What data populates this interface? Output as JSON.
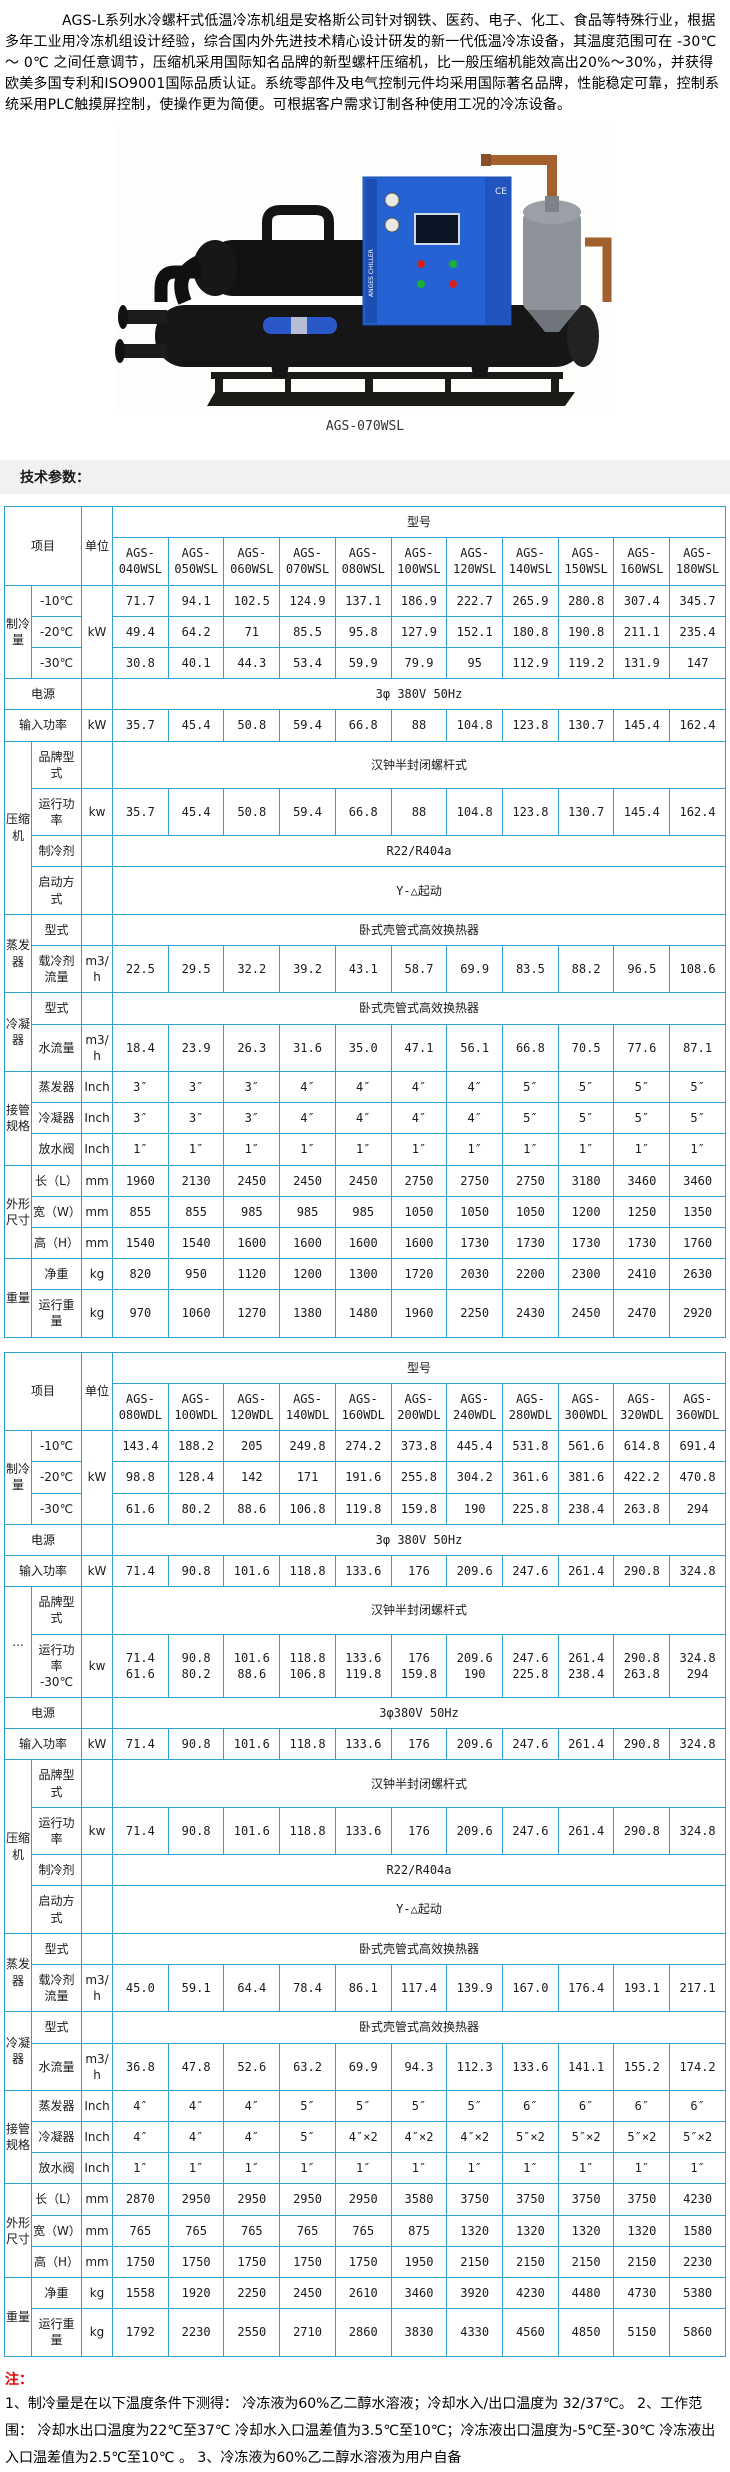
{
  "intro": "AGS-L系列水冷螺杆式低温冷冻机组是安格斯公司针对钢铁、医药、电子、化工、食品等特殊行业，根据多年工业用冷冻机组设计经验，综合国内外先进技术精心设计研发的新一代低温冷冻设备，其温度范围可在 -30℃ ～ 0℃ 之间任意调节，压缩机采用国际知名品牌的新型螺杆压缩机，比一般压缩机能效高出20%～30%，并获得欧美多国专利和ISO9001国际品质认证。系统零部件及电气控制元件均采用国际著名品牌，性能稳定可靠，控制系统采用PLC触摸屏控制，使操作更为简便。可根据客户需求订制各种使用工况的冷冻设备。",
  "photo": {
    "caption": "AGS-070WSL"
  },
  "section": {
    "heading": "技术参数："
  },
  "colors": {
    "table_border": "#2f9fd2",
    "heading_bg": "#f1f1f1",
    "note_red": "#e60000",
    "cabinet_blue": "#2563d4"
  },
  "tables": [
    {
      "header": {
        "item": "项目",
        "unit": "单位",
        "model": "型号",
        "models": [
          "AGS-\n040WSL",
          "AGS-\n050WSL",
          "AGS-\n060WSL",
          "AGS-\n070WSL",
          "AGS-\n080WSL",
          "AGS-\n100WSL",
          "AGS-\n120WSL",
          "AGS-\n140WSL",
          "AGS-\n150WSL",
          "AGS-\n160WSL",
          "AGS-\n180WSL"
        ]
      },
      "rows": [
        {
          "g": "制冷量",
          "gs": 3,
          "label": "-10℃",
          "unit": "kW",
          "us": 3,
          "values": [
            "71.7",
            "94.1",
            "102.5",
            "124.9",
            "137.1",
            "186.9",
            "222.7",
            "265.9",
            "280.8",
            "307.4",
            "345.7"
          ]
        },
        {
          "label": "-20℃",
          "values": [
            "49.4",
            "64.2",
            "71",
            "85.5",
            "95.8",
            "127.9",
            "152.1",
            "180.8",
            "190.8",
            "211.1",
            "235.4"
          ]
        },
        {
          "label": "-30℃",
          "values": [
            "30.8",
            "40.1",
            "44.3",
            "53.4",
            "59.9",
            "79.9",
            "95",
            "112.9",
            "119.2",
            "131.9",
            "147"
          ]
        },
        {
          "wide": true,
          "label": "电源",
          "unit": "",
          "span": "3φ 380V 50Hz"
        },
        {
          "wide": true,
          "label": "输入功率",
          "unit": "kW",
          "values": [
            "35.7",
            "45.4",
            "50.8",
            "59.4",
            "66.8",
            "88",
            "104.8",
            "123.8",
            "130.7",
            "145.4",
            "162.4"
          ]
        },
        {
          "g": "压缩机",
          "gs": 4,
          "label": "品牌型式",
          "unit": "",
          "span": "汉钟半封闭螺杆式"
        },
        {
          "label": "运行功率",
          "unit": "kw",
          "values": [
            "35.7",
            "45.4",
            "50.8",
            "59.4",
            "66.8",
            "88",
            "104.8",
            "123.8",
            "130.7",
            "145.4",
            "162.4"
          ]
        },
        {
          "label": "制冷剂",
          "unit": "",
          "span": "R22/R404a"
        },
        {
          "label": "启动方式",
          "unit": "",
          "span": "Y-△起动"
        },
        {
          "g": "蒸发器",
          "gs": 2,
          "label": "型式",
          "unit": "",
          "span": "卧式壳管式高效换热器"
        },
        {
          "label": "载冷剂流量",
          "unit": "m3/h",
          "values": [
            "22.5",
            "29.5",
            "32.2",
            "39.2",
            "43.1",
            "58.7",
            "69.9",
            "83.5",
            "88.2",
            "96.5",
            "108.6"
          ]
        },
        {
          "g": "冷凝器",
          "gs": 2,
          "label": "型式",
          "unit": "",
          "span": "卧式壳管式高效换热器"
        },
        {
          "label": "水流量",
          "unit": "m3/h",
          "values": [
            "18.4",
            "23.9",
            "26.3",
            "31.6",
            "35.0",
            "47.1",
            "56.1",
            "66.8",
            "70.5",
            "77.6",
            "87.1"
          ]
        },
        {
          "g": "接管规格",
          "gs": 3,
          "label": "蒸发器",
          "unit": "Inch",
          "values": [
            "3″",
            "3″",
            "3″",
            "4″",
            "4″",
            "4″",
            "4″",
            "5″",
            "5″",
            "5″",
            "5″"
          ]
        },
        {
          "label": "冷凝器",
          "unit": "Inch",
          "values": [
            "3″",
            "3″",
            "3″",
            "4″",
            "4″",
            "4″",
            "4″",
            "5″",
            "5″",
            "5″",
            "5″"
          ]
        },
        {
          "label": "放水阀",
          "unit": "Inch",
          "values": [
            "1″",
            "1″",
            "1″",
            "1″",
            "1″",
            "1″",
            "1″",
            "1″",
            "1″",
            "1″",
            "1″"
          ]
        },
        {
          "g": "外形尺寸",
          "gs": 3,
          "label": "长（L）",
          "unit": "mm",
          "values": [
            "1960",
            "2130",
            "2450",
            "2450",
            "2450",
            "2750",
            "2750",
            "2750",
            "3180",
            "3460",
            "3460"
          ]
        },
        {
          "label": "宽（W）",
          "unit": "mm",
          "values": [
            "855",
            "855",
            "985",
            "985",
            "985",
            "1050",
            "1050",
            "1050",
            "1200",
            "1250",
            "1350"
          ]
        },
        {
          "label": "高（H）",
          "unit": "mm",
          "values": [
            "1540",
            "1540",
            "1600",
            "1600",
            "1600",
            "1600",
            "1730",
            "1730",
            "1730",
            "1730",
            "1760"
          ]
        },
        {
          "g": "重量",
          "gs": 2,
          "label": "净重",
          "unit": "kg",
          "values": [
            "820",
            "950",
            "1120",
            "1200",
            "1300",
            "1720",
            "2030",
            "2200",
            "2300",
            "2410",
            "2630"
          ]
        },
        {
          "label": "运行重量",
          "unit": "kg",
          "values": [
            "970",
            "1060",
            "1270",
            "1380",
            "1480",
            "1960",
            "2250",
            "2430",
            "2450",
            "2470",
            "2920"
          ]
        }
      ]
    },
    {
      "header": {
        "item": "项目",
        "unit": "单位",
        "model": "型号",
        "models": [
          "AGS-\n080WDL",
          "AGS-\n100WDL",
          "AGS-\n120WDL",
          "AGS-\n140WDL",
          "AGS-\n160WDL",
          "AGS-\n200WDL",
          "AGS-\n240WDL",
          "AGS-\n280WDL",
          "AGS-\n300WDL",
          "AGS-\n320WDL",
          "AGS-\n360WDL"
        ]
      },
      "rows": [
        {
          "g": "制冷量",
          "gs": 3,
          "label": "-10℃",
          "unit": "kW",
          "us": 3,
          "values": [
            "143.4",
            "188.2",
            "205",
            "249.8",
            "274.2",
            "373.8",
            "445.4",
            "531.8",
            "561.6",
            "614.8",
            "691.4"
          ]
        },
        {
          "label": "-20℃",
          "values": [
            "98.8",
            "128.4",
            "142",
            "171",
            "191.6",
            "255.8",
            "304.2",
            "361.6",
            "381.6",
            "422.2",
            "470.8"
          ]
        },
        {
          "label": "-30℃",
          "values": [
            "61.6",
            "80.2",
            "88.6",
            "106.8",
            "119.8",
            "159.8",
            "190",
            "225.8",
            "238.4",
            "263.8",
            "294"
          ]
        },
        {
          "wide": true,
          "label": "电源",
          "unit": "",
          "span": "3φ 380V 50Hz"
        },
        {
          "wide": true,
          "label": "输入功率",
          "unit": "kW",
          "values": [
            "71.4",
            "90.8",
            "101.6",
            "118.8",
            "133.6",
            "176",
            "209.6",
            "247.6",
            "261.4",
            "290.8",
            "324.8"
          ]
        },
        {
          "g": "...",
          "gs": 2,
          "label": "品牌型式",
          "unit": "",
          "span": "汉钟半封闭螺杆式"
        },
        {
          "label": "运行功率\n-30℃",
          "unit": "kw",
          "values": [
            "71.4\n61.6",
            "90.8\n80.2",
            "101.6\n88.6",
            "118.8\n106.8",
            "133.6\n119.8",
            "176\n159.8",
            "209.6\n190",
            "247.6\n225.8",
            "261.4\n238.4",
            "290.8\n263.8",
            "324.8\n294"
          ]
        },
        {
          "wide": true,
          "label": "电源",
          "unit": "",
          "span": "3φ380V 50Hz"
        },
        {
          "wide": true,
          "label": "输入功率",
          "unit": "kW",
          "values": [
            "71.4",
            "90.8",
            "101.6",
            "118.8",
            "133.6",
            "176",
            "209.6",
            "247.6",
            "261.4",
            "290.8",
            "324.8"
          ]
        },
        {
          "g": "压缩机",
          "gs": 4,
          "label": "品牌型式",
          "unit": "",
          "span": "汉钟半封闭螺杆式"
        },
        {
          "label": "运行功率",
          "unit": "kw",
          "values": [
            "71.4",
            "90.8",
            "101.6",
            "118.8",
            "133.6",
            "176",
            "209.6",
            "247.6",
            "261.4",
            "290.8",
            "324.8"
          ]
        },
        {
          "label": "制冷剂",
          "unit": "",
          "span": "R22/R404a"
        },
        {
          "label": "启动方式",
          "unit": "",
          "span": "Y-△起动"
        },
        {
          "g": "蒸发器",
          "gs": 2,
          "label": "型式",
          "unit": "",
          "span": "卧式壳管式高效换热器"
        },
        {
          "label": "载冷剂流量",
          "unit": "m3/h",
          "values": [
            "45.0",
            "59.1",
            "64.4",
            "78.4",
            "86.1",
            "117.4",
            "139.9",
            "167.0",
            "176.4",
            "193.1",
            "217.1"
          ]
        },
        {
          "g": "冷凝器",
          "gs": 2,
          "label": "型式",
          "unit": "",
          "span": "卧式壳管式高效换热器"
        },
        {
          "label": "水流量",
          "unit": "m3/h",
          "values": [
            "36.8",
            "47.8",
            "52.6",
            "63.2",
            "69.9",
            "94.3",
            "112.3",
            "133.6",
            "141.1",
            "155.2",
            "174.2"
          ]
        },
        {
          "g": "接管规格",
          "gs": 3,
          "label": "蒸发器",
          "unit": "Inch",
          "values": [
            "4″",
            "4″",
            "4″",
            "5″",
            "5″",
            "5″",
            "5″",
            "6″",
            "6″",
            "6″",
            "6″"
          ]
        },
        {
          "label": "冷凝器",
          "unit": "Inch",
          "values": [
            "4″",
            "4″",
            "4″",
            "5″",
            "4″×2",
            "4″×2",
            "4″×2",
            "5″×2",
            "5″×2",
            "5″×2",
            "5″×2"
          ]
        },
        {
          "label": "放水阀",
          "unit": "Inch",
          "values": [
            "1″",
            "1″",
            "1″",
            "1″",
            "1″",
            "1″",
            "1″",
            "1″",
            "1″",
            "1″",
            "1″"
          ]
        },
        {
          "g": "外形尺寸",
          "gs": 3,
          "label": "长（L）",
          "unit": "mm",
          "values": [
            "2870",
            "2950",
            "2950",
            "2950",
            "2950",
            "3580",
            "3750",
            "3750",
            "3750",
            "3750",
            "4230"
          ]
        },
        {
          "label": "宽（W）",
          "unit": "mm",
          "values": [
            "765",
            "765",
            "765",
            "765",
            "765",
            "875",
            "1320",
            "1320",
            "1320",
            "1320",
            "1580"
          ]
        },
        {
          "label": "高（H）",
          "unit": "mm",
          "values": [
            "1750",
            "1750",
            "1750",
            "1750",
            "1750",
            "1950",
            "2150",
            "2150",
            "2150",
            "2150",
            "2230"
          ]
        },
        {
          "g": "重量",
          "gs": 2,
          "label": "净重",
          "unit": "kg",
          "values": [
            "1558",
            "1920",
            "2250",
            "2450",
            "2610",
            "3460",
            "3920",
            "4230",
            "4480",
            "4730",
            "5380"
          ]
        },
        {
          "label": "运行重量",
          "unit": "kg",
          "values": [
            "1792",
            "2230",
            "2550",
            "2710",
            "2860",
            "3830",
            "4330",
            "4560",
            "4850",
            "5150",
            "5860"
          ]
        }
      ]
    }
  ],
  "notes": {
    "label": "注：",
    "body": "1、制冷量是在以下温度条件下测得： 冷冻液为60%乙二醇水溶液；冷却水入/出口温度为 32/37℃。 2、工作范围： 冷却水出口温度为22℃至37℃ 冷却水入口温差值为3.5℃至10℃；冷冻液出口温度为-5℃至-30℃ 冷冻液出入口温差值为2.5℃至10℃ 。 3、冷冻液为60%乙二醇水溶液为用户自备"
  }
}
